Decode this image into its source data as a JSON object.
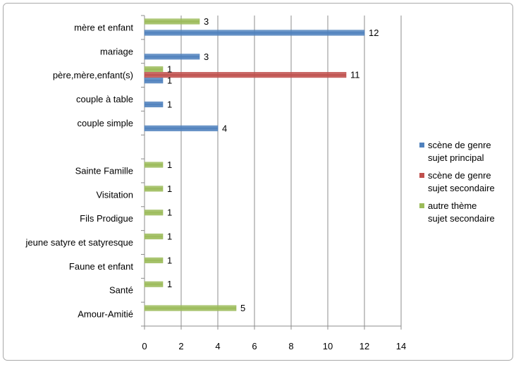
{
  "chart_data": {
    "type": "bar",
    "orientation": "horizontal",
    "categories": [
      "mère et enfant",
      "mariage",
      "père,mère,enfant(s)",
      "couple à table",
      "couple simple",
      "",
      "Sainte Famille",
      "Visitation",
      "Fils Prodigue",
      "jeune satyre et satyresque",
      "Faune et enfant",
      "Santé",
      "Amour-Amitié"
    ],
    "series": [
      {
        "name": "scène de genre\nsujet principal",
        "color": "#4f81bd",
        "values": [
          12,
          3,
          1,
          1,
          4,
          null,
          null,
          null,
          null,
          null,
          null,
          null,
          null
        ]
      },
      {
        "name": "scène de genre\nsujet secondaire",
        "color": "#c0504d",
        "values": [
          null,
          null,
          11,
          null,
          null,
          null,
          null,
          null,
          null,
          null,
          null,
          null,
          null
        ]
      },
      {
        "name": "autre thème\nsujet secondaire",
        "color": "#9bbb59",
        "values": [
          3,
          null,
          1,
          null,
          null,
          null,
          1,
          1,
          1,
          1,
          1,
          1,
          5
        ]
      }
    ],
    "x_ticks": [
      "0",
      "2",
      "4",
      "6",
      "8",
      "10",
      "12",
      "14"
    ],
    "xlim": [
      0,
      14
    ],
    "grid": true,
    "legend_position": "right",
    "title": "",
    "xlabel": "",
    "ylabel": ""
  }
}
